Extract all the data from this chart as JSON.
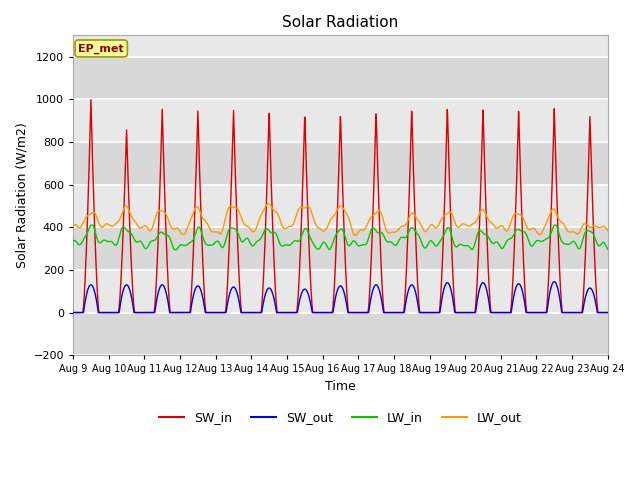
{
  "title": "Solar Radiation",
  "ylabel": "Solar Radiation (W/m2)",
  "xlabel": "Time",
  "ylim": [
    -200,
    1300
  ],
  "yticks": [
    -200,
    0,
    200,
    400,
    600,
    800,
    1000,
    1200
  ],
  "xtick_labels": [
    "Aug 9",
    "Aug 10",
    "Aug 11",
    "Aug 12",
    "Aug 13",
    "Aug 14",
    "Aug 15",
    "Aug 16",
    "Aug 17",
    "Aug 18",
    "Aug 19",
    "Aug 20",
    "Aug 21",
    "Aug 22",
    "Aug 23",
    "Aug 24"
  ],
  "colors": {
    "SW_in": "#dd0000",
    "SW_out": "#0000dd",
    "LW_in": "#00cc00",
    "LW_out": "#ff9900"
  },
  "plot_bg": "#f0f0f0",
  "label_box": {
    "text": "EP_met",
    "facecolor": "#ffff99",
    "edgecolor": "#999900",
    "textcolor": "#8b0000"
  },
  "SW_in_peak": [
    1000,
    860,
    960,
    955,
    960,
    950,
    935,
    940,
    950,
    960,
    965,
    960,
    950,
    960,
    920
  ],
  "SW_out_peak": [
    130,
    130,
    130,
    125,
    120,
    115,
    110,
    125,
    130,
    130,
    140,
    140,
    135,
    145,
    115
  ]
}
